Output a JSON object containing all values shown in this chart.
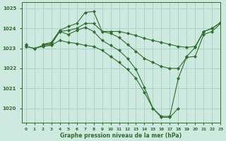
{
  "background_color": "#ceeae0",
  "grid_color": "#a8d4c8",
  "line_color": "#2d6e2d",
  "marker_color": "#2d6e2d",
  "xlabel": "Graphe pression niveau de la mer (hPa)",
  "xlim": [
    -0.5,
    23
  ],
  "ylim": [
    1019.3,
    1025.3
  ],
  "yticks": [
    1020,
    1021,
    1022,
    1023,
    1024,
    1025
  ],
  "xticks": [
    0,
    1,
    2,
    3,
    4,
    5,
    6,
    7,
    8,
    9,
    10,
    11,
    12,
    13,
    14,
    15,
    16,
    17,
    18,
    19,
    20,
    21,
    22,
    23
  ],
  "series": [
    [
      1023.2,
      null,
      1023.2,
      1023.3,
      1023.9,
      1024.1,
      1024.25,
      1024.8,
      1024.85,
      1023.85,
      1023.85,
      1023.85,
      1023.75,
      1023.65,
      1023.5,
      1023.4,
      1023.3,
      1023.2,
      1023.1,
      1023.05,
      1023.1,
      1023.85,
      1024.0,
      1024.3
    ],
    [
      1023.15,
      null,
      1023.2,
      1023.25,
      1023.85,
      1023.9,
      1024.0,
      1024.25,
      1024.25,
      1023.85,
      1023.75,
      1023.55,
      1023.2,
      1022.85,
      1022.5,
      1022.3,
      1022.1,
      1022.0,
      1022.0,
      1022.55,
      1022.6,
      1023.7,
      1023.85,
      1024.25
    ],
    [
      1023.1,
      1023.0,
      1023.15,
      1023.2,
      1023.85,
      1023.7,
      1023.9,
      1024.05,
      1023.85,
      1023.4,
      1023.15,
      1022.9,
      1022.5,
      1021.95,
      1021.05,
      1020.0,
      1019.6,
      1019.6,
      1021.5,
      1022.6,
      1023.05,
      1023.85,
      1024.0,
      1024.3
    ],
    [
      1023.1,
      1023.0,
      1023.1,
      1023.15,
      1023.4,
      1023.3,
      1023.25,
      1023.15,
      1023.1,
      1022.9,
      1022.6,
      1022.3,
      1021.95,
      1021.5,
      1020.8,
      1020.0,
      1019.55,
      1019.55,
      1020.0,
      null,
      null,
      null,
      null,
      null
    ]
  ]
}
